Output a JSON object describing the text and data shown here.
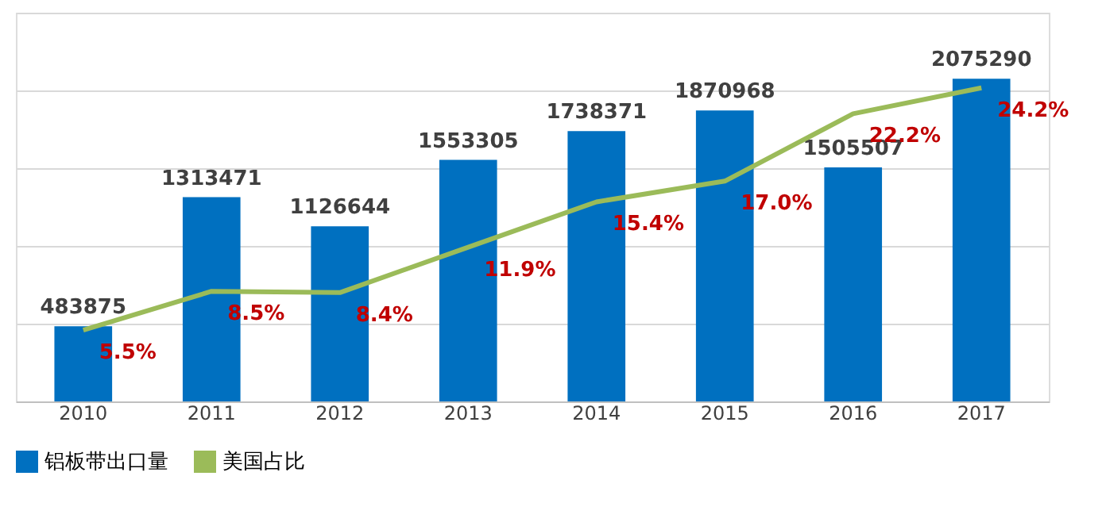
{
  "chart_data": {
    "type": "bar",
    "categories": [
      "2010",
      "2011",
      "2012",
      "2013",
      "2014",
      "2015",
      "2016",
      "2017"
    ],
    "series": [
      {
        "name": "铝板带出口量",
        "color": "#0070c0",
        "values": [
          483875,
          1313471,
          1126644,
          1553305,
          1738371,
          1870968,
          1505507,
          2075290
        ]
      },
      {
        "name": "美国占比",
        "type": "line",
        "axis": "y2",
        "color": "#9bbb59",
        "values": [
          5.5,
          8.5,
          8.4,
          11.9,
          15.4,
          17.0,
          22.2,
          24.2
        ],
        "value_labels": [
          "5.5%",
          "8.5%",
          "8.4%",
          "11.9%",
          "15.4%",
          "17.0%",
          "22.2%",
          "24.2%"
        ]
      }
    ],
    "data_labels": true,
    "ylim": [
      0,
      2500000
    ],
    "yticks": [
      {
        "value": 0,
        "label": null
      },
      {
        "value": 500000,
        "label": null
      },
      {
        "value": 1000000,
        "label": null
      },
      {
        "value": 1500000,
        "label": null
      },
      {
        "value": 2000000,
        "label": null
      },
      {
        "value": 2500000,
        "label": null
      }
    ],
    "y2lim": [
      0,
      30
    ],
    "tick_labels": "x",
    "grid": "y",
    "legend": "bottom",
    "marker": "none",
    "line_style": "solid"
  }
}
